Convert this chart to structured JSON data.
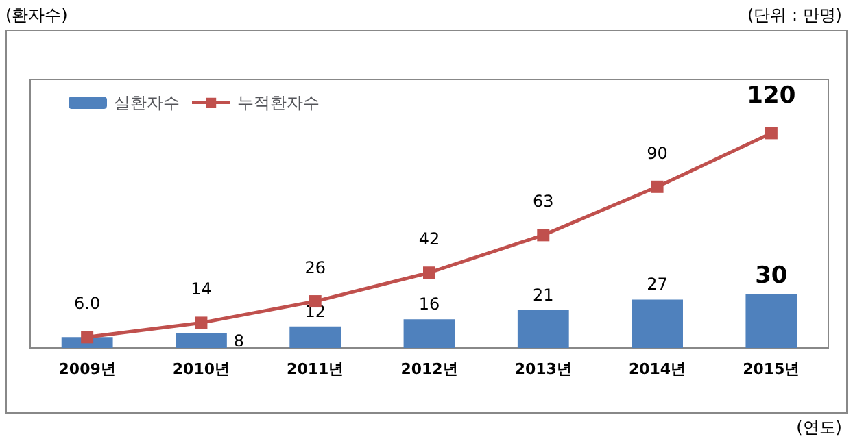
{
  "chart_data": {
    "type": "bar",
    "xlabel": "(연도)",
    "annotations": [
      "(환자수)",
      "(단위 : 만명)"
    ],
    "categories": [
      "2009년",
      "2010년",
      "2011년",
      "2012년",
      "2013년",
      "2014년",
      "2015년"
    ],
    "series": [
      {
        "name": "실환자수",
        "color": "#4f81bd",
        "values": [
          6.0,
          8,
          12,
          16,
          21,
          27,
          30
        ],
        "value_labels": [
          null,
          "8",
          "12",
          "16",
          "21",
          "27",
          "30"
        ]
      },
      {
        "name": "누적환자수",
        "type": "line",
        "color": "#c0504d",
        "values": [
          6.0,
          14,
          26,
          42,
          63,
          90,
          120
        ],
        "value_labels": [
          "6.0",
          "14",
          "26",
          "42",
          "63",
          "90",
          "120"
        ]
      }
    ],
    "legend": "top left",
    "marker": "square",
    "line_style": "solid"
  }
}
